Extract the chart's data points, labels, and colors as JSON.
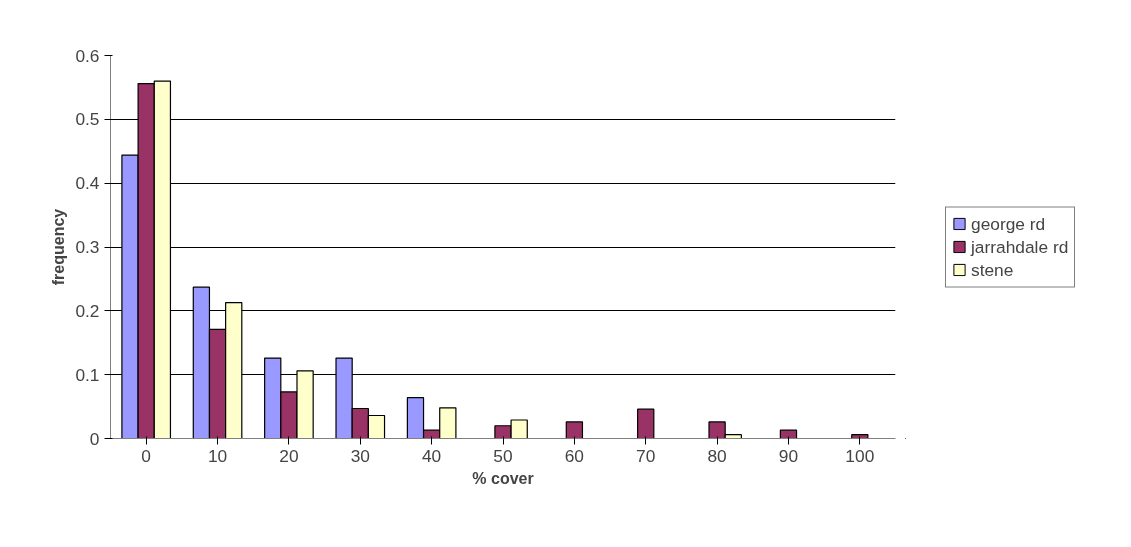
{
  "chart_data": {
    "type": "bar",
    "xlabel": "% cover",
    "ylabel": "frequency",
    "categories": [
      "0",
      "10",
      "20",
      "30",
      "40",
      "50",
      "60",
      "70",
      "80",
      "90",
      "100"
    ],
    "series": [
      {
        "name": "george rd",
        "color": "#9999ff",
        "values": [
          0.444,
          0.237,
          0.126,
          0.126,
          0.064,
          0,
          0,
          0,
          0,
          0,
          0
        ]
      },
      {
        "name": "jarrahdale rd",
        "color": "#993366",
        "values": [
          0.556,
          0.171,
          0.073,
          0.047,
          0.013,
          0.02,
          0.026,
          0.046,
          0.026,
          0.013,
          0.006
        ]
      },
      {
        "name": "stene",
        "color": "#ffffcc",
        "values": [
          0.56,
          0.213,
          0.106,
          0.036,
          0.048,
          0.029,
          0,
          0,
          0.006,
          0,
          0
        ]
      }
    ],
    "ylim": [
      0,
      0.6
    ],
    "yticks": [
      0,
      0.1,
      0.2,
      0.3,
      0.4,
      0.5,
      0.6
    ],
    "grid": "y",
    "legend": "right"
  }
}
